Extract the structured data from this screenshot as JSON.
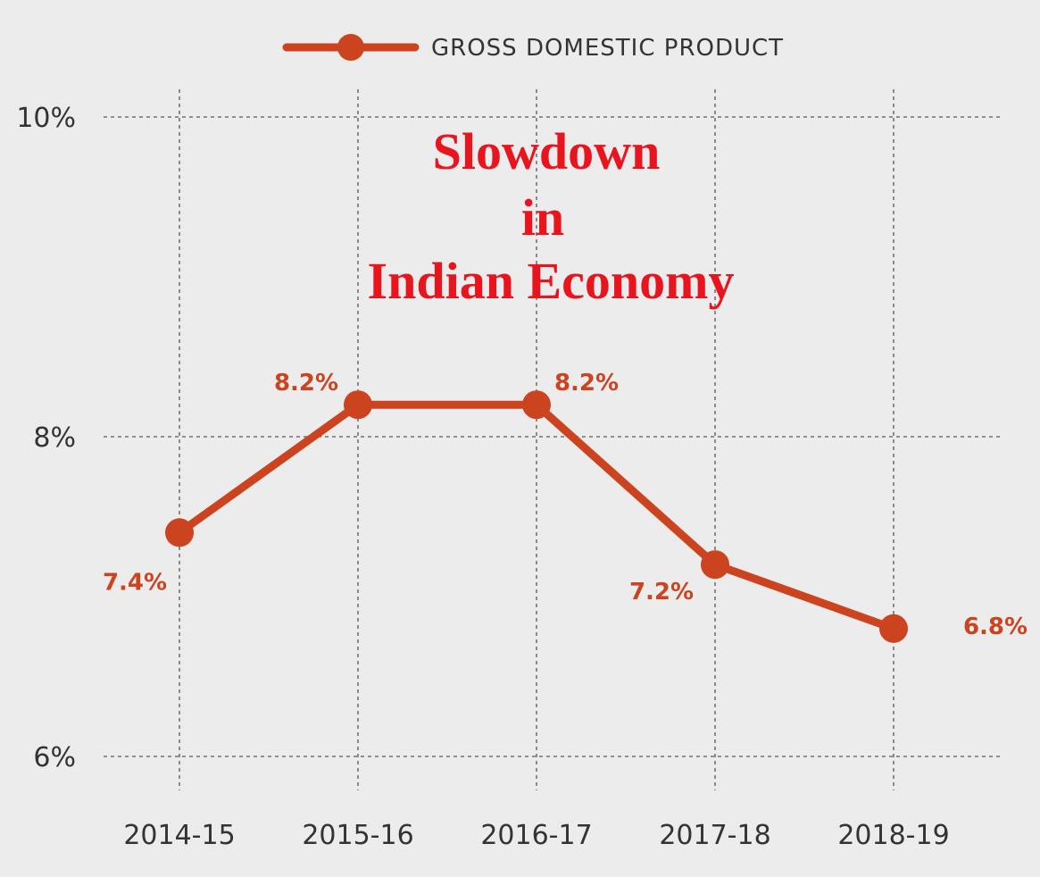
{
  "chart_data": {
    "type": "line",
    "title_lines": [
      "Slowdown",
      "in",
      "Indian Economy"
    ],
    "categories": [
      "2014-15",
      "2015-16",
      "2016-17",
      "2017-18",
      "2018-19"
    ],
    "series": [
      {
        "name": "GROSS DOMESTIC PRODUCT",
        "values": [
          7.4,
          8.2,
          8.2,
          7.2,
          6.8
        ],
        "labels": [
          "7.4%",
          "8.2%",
          "8.2%",
          "7.2%",
          "6.8%"
        ]
      }
    ],
    "y_ticks": [
      {
        "value": 10,
        "label": "10%"
      },
      {
        "value": 8,
        "label": "8%"
      },
      {
        "value": 6,
        "label": "6%"
      }
    ],
    "ylim": [
      5.8,
      10
    ],
    "grid": true,
    "legend_position": "top-center",
    "colors": {
      "series": "#cc4320",
      "title": "#e8141e",
      "background": "#ececec"
    }
  }
}
